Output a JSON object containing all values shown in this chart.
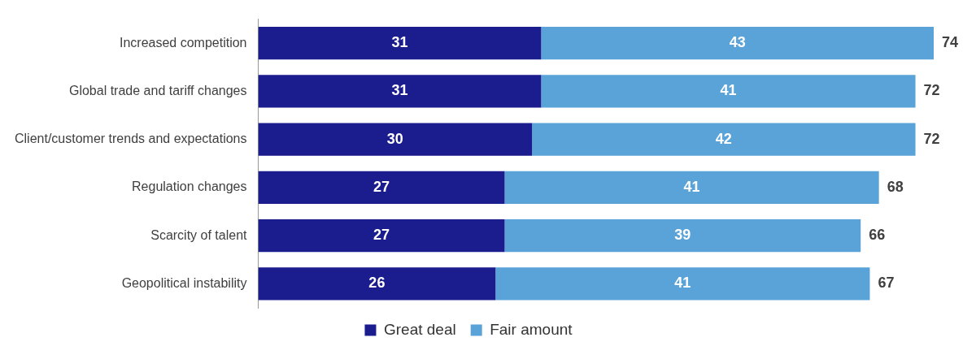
{
  "chart_data": {
    "type": "bar",
    "orientation": "horizontal",
    "stacked": true,
    "categories": [
      "Increased competition",
      "Global trade and tariff changes",
      "Client/customer trends and expectations",
      "Regulation changes",
      "Scarcity of talent",
      "Geopolitical instability"
    ],
    "series": [
      {
        "name": "Great deal",
        "color": "#1b1c8e",
        "values": [
          31,
          31,
          30,
          27,
          27,
          26
        ]
      },
      {
        "name": "Fair amount",
        "color": "#5aa3d8",
        "values": [
          43,
          41,
          42,
          41,
          39,
          41
        ]
      }
    ],
    "totals": [
      "74",
      "72",
      "72",
      "68",
      "66",
      "67"
    ],
    "data_labels": true,
    "grid": false,
    "legend": "bottom",
    "tick_labels": "y"
  }
}
